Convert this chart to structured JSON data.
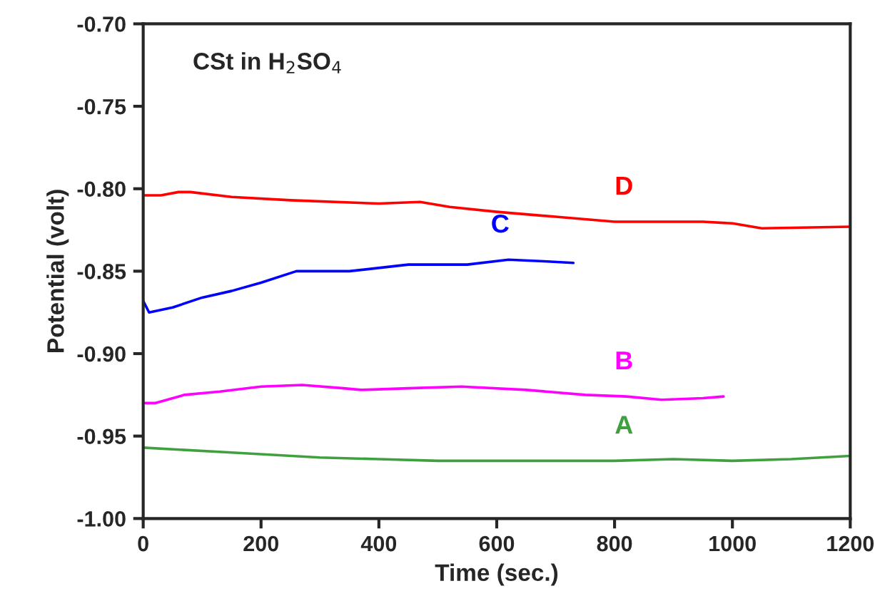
{
  "chart_data": {
    "type": "line",
    "xlabel": "Time (sec.)",
    "ylabel": "Potential (volt)",
    "xlim": [
      0,
      1200
    ],
    "ylim": [
      -1.0,
      -0.7
    ],
    "xticks": [
      0,
      200,
      400,
      600,
      800,
      1000,
      1200
    ],
    "yticks": [
      {
        "value": -1.0,
        "label": "-1.00"
      },
      {
        "value": -0.95,
        "label": "-0.95"
      },
      {
        "value": -0.9,
        "label": "-0.90"
      },
      {
        "value": -0.85,
        "label": "-0.85"
      },
      {
        "value": -0.8,
        "label": "-0.80"
      },
      {
        "value": -0.75,
        "label": "-0.75"
      },
      {
        "value": -0.7,
        "label": "-0.70"
      }
    ],
    "grid": false,
    "legend": false,
    "series": [
      {
        "name": "D",
        "color": "#ff0000",
        "x": [
          0,
          30,
          60,
          80,
          150,
          250,
          400,
          470,
          520,
          600,
          700,
          800,
          950,
          1000,
          1050,
          1200
        ],
        "values": [
          -0.804,
          -0.804,
          -0.802,
          -0.802,
          -0.805,
          -0.807,
          -0.809,
          -0.808,
          -0.811,
          -0.814,
          -0.817,
          -0.82,
          -0.82,
          -0.821,
          -0.824,
          -0.823
        ]
      },
      {
        "name": "C",
        "color": "#0000ff",
        "x": [
          0,
          10,
          50,
          100,
          150,
          200,
          260,
          350,
          450,
          550,
          620,
          680,
          730
        ],
        "values": [
          -0.868,
          -0.875,
          -0.872,
          -0.866,
          -0.862,
          -0.857,
          -0.85,
          -0.85,
          -0.846,
          -0.846,
          -0.843,
          -0.844,
          -0.845
        ]
      },
      {
        "name": "B",
        "color": "#ff00ff",
        "x": [
          0,
          20,
          70,
          130,
          200,
          270,
          340,
          370,
          450,
          540,
          650,
          750,
          820,
          880,
          950,
          985
        ],
        "values": [
          -0.93,
          -0.93,
          -0.925,
          -0.923,
          -0.92,
          -0.919,
          -0.921,
          -0.922,
          -0.921,
          -0.92,
          -0.922,
          -0.925,
          -0.926,
          -0.928,
          -0.927,
          -0.926
        ]
      },
      {
        "name": "A",
        "color": "#40a040",
        "x": [
          0,
          150,
          300,
          400,
          500,
          800,
          900,
          1000,
          1100,
          1200
        ],
        "values": [
          -0.957,
          -0.96,
          -0.963,
          -0.964,
          -0.965,
          -0.965,
          -0.964,
          -0.965,
          -0.964,
          -0.962
        ]
      }
    ],
    "annotations": [
      "CSt in H$_{2}$SO$_{4}$"
    ]
  }
}
